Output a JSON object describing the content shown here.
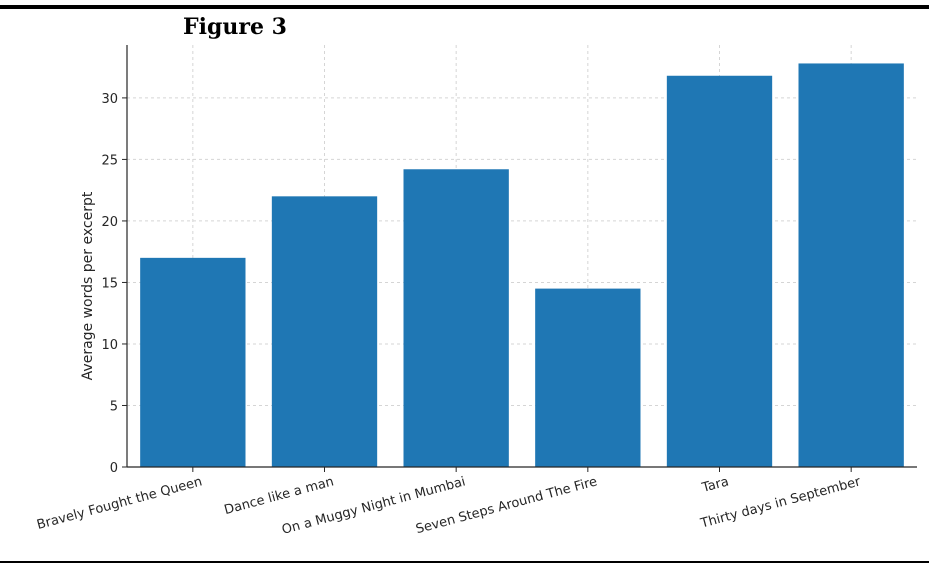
{
  "figure_label": "Figure 3",
  "chart_data": {
    "type": "bar",
    "title": "",
    "xlabel": "",
    "ylabel": "Average words per excerpt",
    "categories": [
      "Bravely Fought the Queen",
      "Dance like a man",
      "On a Muggy Night in Mumbai",
      "Seven Steps Around The Fire",
      "Tara",
      "Thirty days in September"
    ],
    "values": [
      17,
      22,
      24.2,
      14.5,
      31.8,
      32.8
    ],
    "ylim": [
      0,
      34.3
    ],
    "yticks": [
      0,
      5,
      10,
      15,
      20,
      25,
      30
    ],
    "grid": true,
    "bar_color": "#1f77b4",
    "grid_color": "#d5d5d5",
    "axis_color": "#262626"
  }
}
